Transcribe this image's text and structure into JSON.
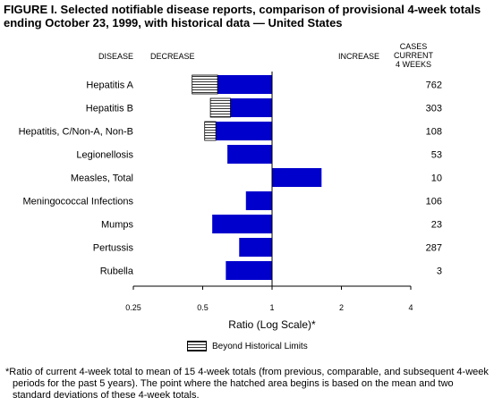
{
  "title_line1": "FIGURE I. Selected notifiable disease reports, comparison of provisional 4-week totals",
  "title_line2": "ending October 23, 1999, with historical data — United States",
  "headers": {
    "disease": "DISEASE",
    "decrease": "DECREASE",
    "increase": "INCREASE",
    "cases_line1": "CASES CURRENT",
    "cases_line2": "4 WEEKS"
  },
  "legend_label": "Beyond Historical Limits",
  "footnote": "*Ratio of current 4-week total to mean of 15 4-week totals (from previous, comparable, and subsequent 4-week periods for the past 5 years). The point where the hatched area begins is based on the mean and two standard deviations of these 4-week totals.",
  "colors": {
    "bar": "#0000cc",
    "hatch_line": "#000000",
    "axis": "#000000"
  },
  "chart_data": {
    "type": "bar",
    "orientation": "horizontal",
    "x_scale": "log2",
    "xlim": [
      0.25,
      4
    ],
    "xticks": [
      0.25,
      0.5,
      1,
      2,
      4
    ],
    "xtick_labels": [
      "0.25",
      "0.5",
      "1",
      "2",
      "4"
    ],
    "xlabel": "Ratio (Log Scale)*",
    "reference_line": 1,
    "categories": [
      "Hepatitis A",
      "Hepatitis B",
      "Hepatitis, C/Non-A, Non-B",
      "Legionellosis",
      "Measles, Total",
      "Meningococcal Infections",
      "Mumps",
      "Pertussis",
      "Rubella"
    ],
    "ratios": [
      0.45,
      0.54,
      0.51,
      0.64,
      1.64,
      0.77,
      0.55,
      0.72,
      0.63
    ],
    "historical_limit": [
      0.58,
      0.66,
      0.57,
      null,
      null,
      null,
      null,
      null,
      null
    ],
    "cases_current_4_weeks": [
      "762",
      "303",
      "108",
      "53",
      "10",
      "106",
      "23",
      "287",
      "3"
    ]
  }
}
